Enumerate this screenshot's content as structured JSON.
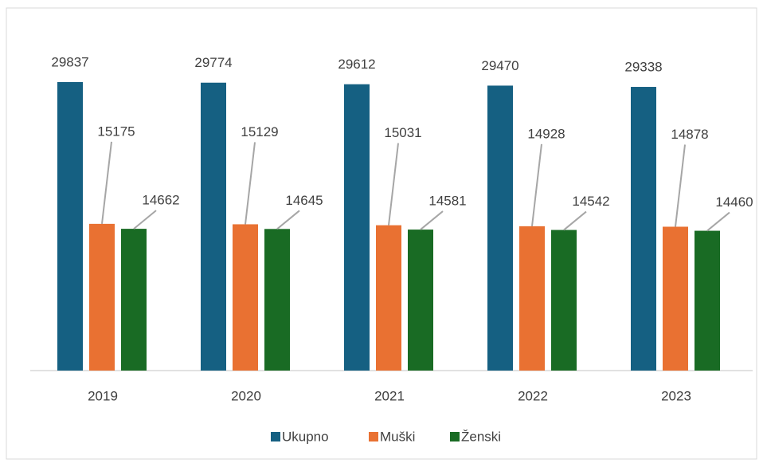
{
  "chart_data": {
    "type": "bar",
    "categories": [
      "2019",
      "2020",
      "2021",
      "2022",
      "2023"
    ],
    "series": [
      {
        "name": "Ukupno",
        "color": "#156082",
        "values": [
          29837,
          29774,
          29612,
          29470,
          29338
        ]
      },
      {
        "name": "Muški",
        "color": "#e97132",
        "values": [
          15175,
          15129,
          15031,
          14928,
          14878
        ]
      },
      {
        "name": "Ženski",
        "color": "#196b24",
        "values": [
          14662,
          14645,
          14581,
          14542,
          14460
        ]
      }
    ],
    "ylim": [
      0,
      30000
    ],
    "legend": "bottom"
  }
}
